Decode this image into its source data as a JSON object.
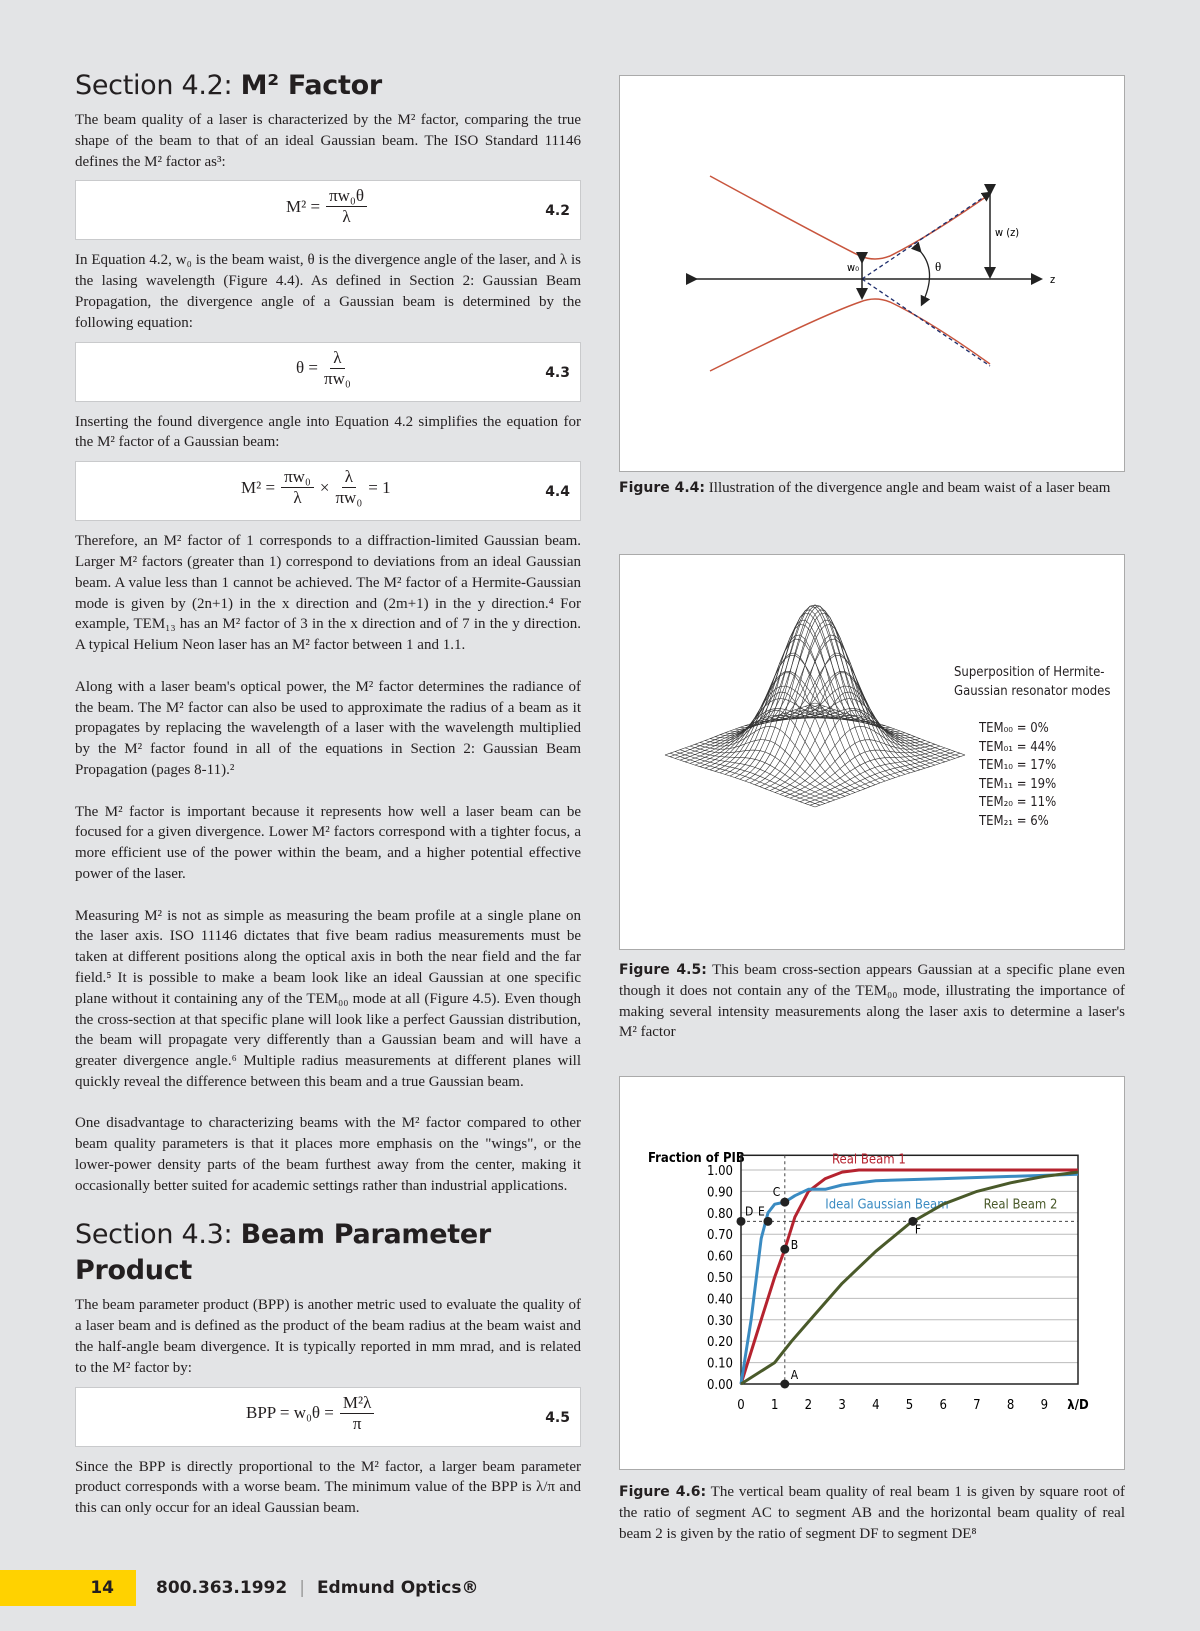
{
  "section42": {
    "title_prefix": "Section 4.2: ",
    "title_bold": "M² Factor",
    "p1": "The beam quality of a laser is characterized by the M² factor, comparing the true shape of the beam to that of an ideal Gaussian beam. The ISO Standard 11146 defines the M² factor as³:",
    "eq42": {
      "lhs": "M² =",
      "num": "πw₀θ",
      "den": "λ",
      "label": "4.2"
    },
    "p2": "In Equation 4.2, w₀ is the beam waist, θ is the divergence angle of the laser, and λ is the lasing wavelength (Figure 4.4). As defined in Section 2: Gaussian Beam Propagation, the divergence angle of a Gaussian beam is determined by the following equation:",
    "eq43": {
      "lhs": "θ =",
      "num": "λ",
      "den": "πw₀",
      "label": "4.3"
    },
    "p3": "Inserting the found divergence angle into Equation 4.2 simplifies the equation for the M² factor of a Gaussian beam:",
    "eq44": {
      "lhs": "M² =",
      "num1": "πw₀",
      "den1": "λ",
      "times": "×",
      "num2": "λ",
      "den2": "πw₀",
      "rhs": "= 1",
      "label": "4.4"
    },
    "p4": "Therefore, an M² factor of 1 corresponds to a diffraction-limited Gaussian beam. Larger M² factors (greater than 1) correspond to deviations from an ideal Gaussian beam. A value less than 1 cannot be achieved. The M² factor of a Hermite-Gaussian mode is given by (2n+1) in the x direction and (2m+1) in the y direction.⁴ For example, TEM₁₃ has an M² factor of 3 in the x direction and of 7 in the y direction. A typical Helium Neon laser has an M² factor between 1 and 1.1.",
    "p5": "Along with a laser beam's optical power, the M² factor determines the radiance of the beam. The M² factor can also be used to approximate the radius of a beam as it propagates by replacing the wavelength of a laser with the wavelength multiplied by the M² factor found in all of the equations in Section 2: Gaussian Beam Propagation (pages 8-11).²",
    "p6": "The M² factor is important because it represents how well a laser beam can be focused for a given divergence. Lower M² factors correspond with a tighter focus, a more efficient use of the power within the beam, and a higher potential effective power of the laser.",
    "p7": "Measuring M² is not as simple as measuring the beam profile at a single plane on the laser axis. ISO 11146 dictates that five beam radius measurements must be taken at different positions along the optical axis in both the near field and the far field.⁵ It is possible to make a beam look like an ideal Gaussian at one specific plane without it containing any of the TEM₀₀ mode at all (Figure 4.5). Even though the cross-section at that specific plane will look like a perfect Gaussian distribution, the beam will propagate very differently than a Gaussian beam and will have a greater divergence angle.⁶ Multiple radius measurements at different planes will quickly reveal the difference between this beam and a true Gaussian beam.",
    "p8": "One disadvantage to characterizing beams with the M² factor compared to other beam quality parameters is that it places more emphasis on the \"wings\", or the lower-power density parts of the beam furthest away from the center, making it occasionally better suited for academic settings rather than industrial applications."
  },
  "section43": {
    "title_prefix": "Section 4.3: ",
    "title_bold": "Beam Parameter Product",
    "p1": "The beam parameter product (BPP) is another metric used to evaluate the quality of a laser beam and is defined as the product of the beam radius at the beam waist and the half-angle beam divergence. It is typically reported in mm mrad, and is related to the M² factor by:",
    "eq45": {
      "lhs": "BPP = w₀θ =",
      "num": "M²λ",
      "den": "π",
      "label": "4.5"
    },
    "p2": "Since the BPP is directly proportional to the M² factor, a larger beam parameter product corresponds with a worse beam. The minimum value of the BPP is λ/π and this can only occur for an ideal Gaussian beam."
  },
  "fig44": {
    "label": "Figure 4.4:",
    "caption": " Illustration of the divergence angle and beam waist of a laser beam",
    "w0": "w₀",
    "theta": "θ",
    "wz": "w (z)",
    "z": "z",
    "beam_color": "#c8553d"
  },
  "fig45": {
    "label": "Figure 4.5:",
    "caption": " This beam cross-section appears Gaussian at a specific plane even though it does not contain any of the TEM₀₀ mode, illustrating the importance of making several intensity measurements along the laser axis to determine a laser's M² factor",
    "title1": "Superposition of Hermite-",
    "title2": "Gaussian resonator modes",
    "modes": [
      "TEM₀₀ = 0%",
      "TEM₀₁ = 44%",
      "TEM₁₀ = 17%",
      "TEM₁₁ = 19%",
      "TEM₂₀ = 11%",
      "TEM₂₁ = 6%"
    ]
  },
  "fig46": {
    "label": "Figure 4.6:",
    "caption": " The vertical beam quality of real beam 1 is given by square root of the ratio of segment AC to segment AB and the horizontal beam quality of real beam 2 is given by the ratio of segment DF to segment DE⁸"
  },
  "chart_data": {
    "type": "line",
    "ylabel": "Fraction of PIB",
    "xlabel": "λ/D",
    "xlim": [
      0,
      10
    ],
    "ylim": [
      0,
      1.05
    ],
    "grid": "horizontal",
    "xticks": [
      "0",
      "1",
      "2",
      "3",
      "4",
      "5",
      "6",
      "7",
      "8",
      "9"
    ],
    "yticks": [
      "0.00",
      "0.10",
      "0.20",
      "0.30",
      "0.40",
      "0.50",
      "0.60",
      "0.70",
      "0.80",
      "0.90",
      "1.00"
    ],
    "series": [
      {
        "name": "Real Beam 1",
        "color": "#b5232f",
        "x": [
          0,
          0.5,
          1,
          1.3,
          1.6,
          2,
          2.5,
          3,
          3.5,
          10
        ],
        "y": [
          0,
          0.25,
          0.5,
          0.63,
          0.78,
          0.9,
          0.96,
          0.99,
          1,
          1
        ]
      },
      {
        "name": "Ideal Gaussian Beam",
        "color": "#3a8bc2",
        "x": [
          0,
          0.3,
          0.6,
          0.8,
          1,
          1.3,
          1.6,
          2,
          2.5,
          3,
          4,
          6,
          8,
          10
        ],
        "y": [
          0,
          0.3,
          0.68,
          0.8,
          0.84,
          0.85,
          0.88,
          0.91,
          0.91,
          0.93,
          0.95,
          0.96,
          0.97,
          0.98
        ]
      },
      {
        "name": "Real Beam 2",
        "color": "#4a5a2a",
        "x": [
          0,
          1,
          1.5,
          2,
          3,
          4,
          5,
          6,
          7,
          8,
          9,
          10
        ],
        "y": [
          0,
          0.1,
          0.2,
          0.29,
          0.47,
          0.62,
          0.75,
          0.84,
          0.9,
          0.94,
          0.97,
          0.99
        ]
      }
    ],
    "points": [
      {
        "label": "A",
        "x": 1.3,
        "y": 0
      },
      {
        "label": "B",
        "x": 1.3,
        "y": 0.63
      },
      {
        "label": "C",
        "x": 1.3,
        "y": 0.85
      },
      {
        "label": "D",
        "x": 0,
        "y": 0.76
      },
      {
        "label": "E",
        "x": 0.8,
        "y": 0.76
      },
      {
        "label": "F",
        "x": 5.1,
        "y": 0.76
      }
    ]
  },
  "footer": {
    "page": "14",
    "phone": "800.363.1992",
    "sep": "|",
    "brand": "Edmund Optics®",
    "accent": "#ffd200"
  }
}
